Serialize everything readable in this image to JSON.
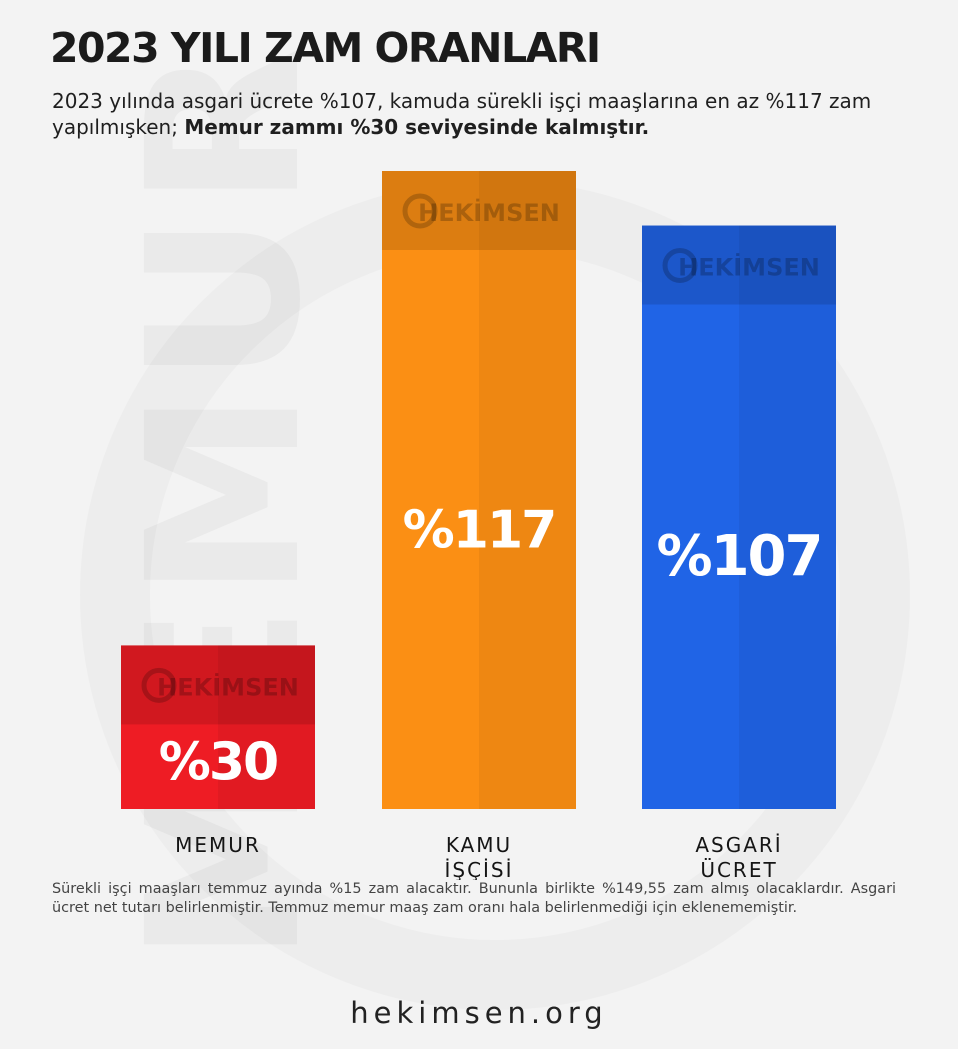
{
  "header": {
    "title": "2023 YILI ZAM ORANLARI",
    "subtitle_regular": "2023 yılında asgari ücrete %107, kamuda sürekli işçi maaşlarına en az %117 zam yapılmışken; ",
    "subtitle_bold": "Memur zammı %30 seviyesinde kalmıştır."
  },
  "watermark": {
    "background_word": "MEMUR",
    "bar_logo_text": "HEKİMSEN"
  },
  "chart_data": {
    "type": "bar",
    "title": "2023 YILI ZAM ORANLARI",
    "ylabel": "",
    "xlabel": "",
    "ylim": [
      0,
      130
    ],
    "categories": [
      [
        "MEMUR"
      ],
      [
        "KAMU",
        "İŞÇİSİ"
      ],
      [
        "ASGARİ",
        "ÜCRET"
      ]
    ],
    "values": [
      30,
      117,
      107
    ],
    "value_labels": [
      "%30",
      "%117",
      "%107"
    ],
    "colors": [
      "#ee1c24",
      "#fb8f14",
      "#2064e6"
    ],
    "grid": false,
    "legend": "none"
  },
  "footnote": "Sürekli işçi maaşları temmuz ayında %15 zam alacaktır. Bununla birlikte %149,55 zam almış olacaklardır. Asgari ücret net tutarı belirlenmiştir. Temmuz memur maaş zam oranı hala belirlenmediği için eklenememiştir.",
  "website": "hekimsen.org"
}
